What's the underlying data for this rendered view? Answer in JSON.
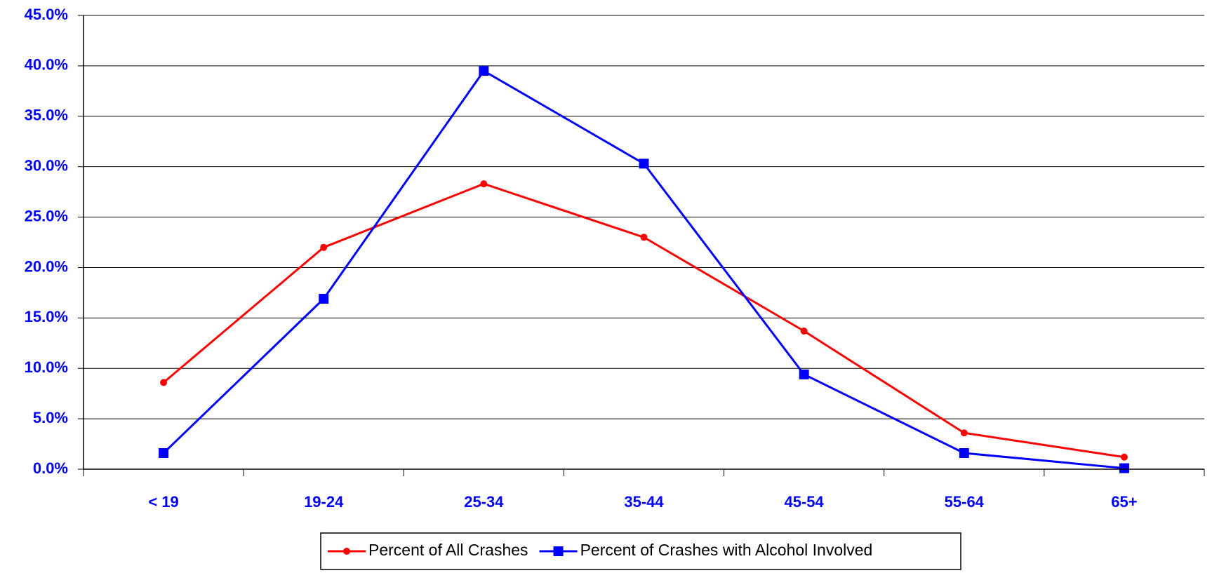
{
  "chart_data": {
    "type": "line",
    "categories": [
      "< 19",
      "19-24",
      "25-34",
      "35-44",
      "45-54",
      "55-64",
      "65+"
    ],
    "series": [
      {
        "name": "Percent of All Crashes",
        "color": "#ff0000",
        "values": [
          8.6,
          22.0,
          28.3,
          23.0,
          13.7,
          3.6,
          1.2
        ]
      },
      {
        "name": "Percent of Crashes with Alcohol Involved",
        "color": "#0000ff",
        "values": [
          1.6,
          16.9,
          39.5,
          30.3,
          9.4,
          1.6,
          0.1
        ]
      }
    ],
    "ylim": [
      0,
      45
    ],
    "yticks": [
      {
        "value": 0,
        "label": "0.0%"
      },
      {
        "value": 5,
        "label": "5.0%"
      },
      {
        "value": 10,
        "label": "10.0%"
      },
      {
        "value": 15,
        "label": "15.0%"
      },
      {
        "value": 20,
        "label": "20.0%"
      },
      {
        "value": 25,
        "label": "25.0%"
      },
      {
        "value": 30,
        "label": "30.0%"
      },
      {
        "value": 35,
        "label": "35.0%"
      },
      {
        "value": 40,
        "label": "40.0%"
      },
      {
        "value": 45,
        "label": "45.0%"
      }
    ],
    "grid": true,
    "legend": "bottom"
  }
}
